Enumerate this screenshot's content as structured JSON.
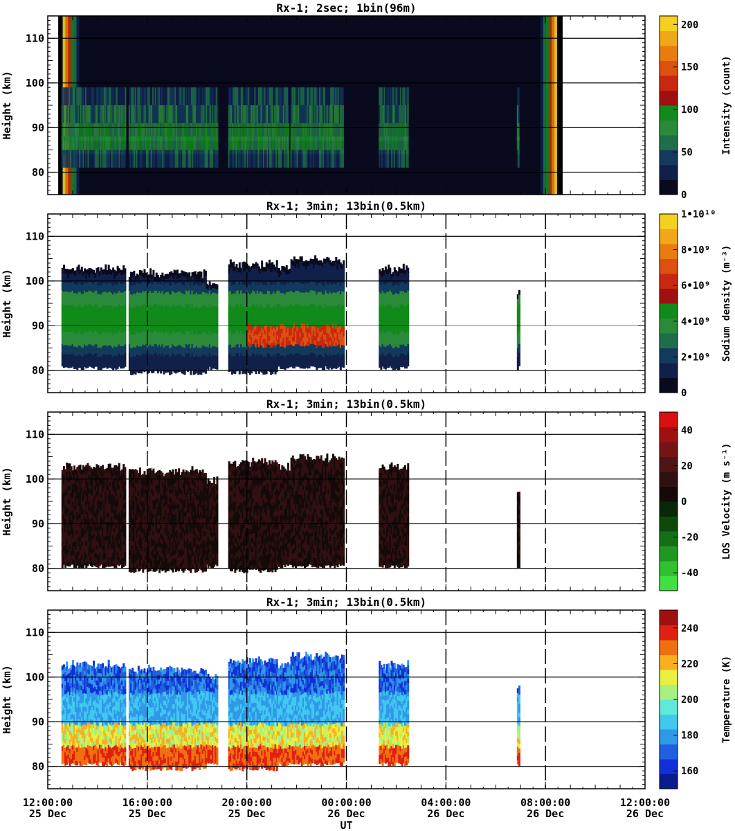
{
  "xaxis": {
    "label": "UT",
    "ticks": [
      {
        "time": "12:00:00",
        "date": "25 Dec",
        "hours": 0
      },
      {
        "time": "16:00:00",
        "date": "25 Dec",
        "hours": 4
      },
      {
        "time": "20:00:00",
        "date": "25 Dec",
        "hours": 8
      },
      {
        "time": "00:00:00",
        "date": "26 Dec",
        "hours": 12
      },
      {
        "time": "04:00:00",
        "date": "26 Dec",
        "hours": 16
      },
      {
        "time": "08:00:00",
        "date": "26 Dec",
        "hours": 20
      },
      {
        "time": "12:00:00",
        "date": "26 Dec",
        "hours": 24
      }
    ]
  },
  "chart_data": [
    {
      "type": "heatmap",
      "title": "Rx-1;  2sec; 1bin(96m)",
      "ylabel": "Height (km)",
      "ylim": [
        75,
        115
      ],
      "yticks": [
        "80",
        "90",
        "100",
        "110"
      ],
      "xlim_hours_since_12UT_25Dec": [
        0,
        24
      ],
      "colorbar": {
        "label": "Intensity (count)",
        "range": [
          0,
          210
        ],
        "ticks": [
          "0",
          "50",
          "100",
          "150",
          "200"
        ],
        "colors": [
          "#0a0a1e",
          "#10204a",
          "#123a5c",
          "#1e6e4a",
          "#2a8a3a",
          "#118a1a",
          "#a01010",
          "#c82810",
          "#dc5010",
          "#e87c10",
          "#f0a818",
          "#f4d020"
        ]
      }
    },
    {
      "type": "heatmap",
      "title": "Rx-1; 3min; 13bin(0.5km)",
      "ylabel": "Height (km)",
      "ylim": [
        75,
        115
      ],
      "yticks": [
        "80",
        "90",
        "100",
        "110"
      ],
      "colorbar": {
        "label": "Sodium density (m⁻³)",
        "range": [
          0,
          10000000000
        ],
        "ticks": [
          "0",
          "2•10⁹",
          "4•10⁹",
          "6•10⁹",
          "8•10⁹",
          "1•10¹⁰"
        ],
        "colors": [
          "#0a0a1e",
          "#10204a",
          "#123a5c",
          "#1e6e4a",
          "#2a8a3a",
          "#118a1a",
          "#a01010",
          "#c82810",
          "#dc5010",
          "#e87c10",
          "#f0a818",
          "#f4d020"
        ]
      }
    },
    {
      "type": "heatmap",
      "title": "Rx-1; 3min; 13bin(0.5km)",
      "ylabel": "Height (km)",
      "ylim": [
        75,
        115
      ],
      "yticks": [
        "80",
        "90",
        "100",
        "110"
      ],
      "colorbar": {
        "label": "LOS Velocity (m s⁻¹)",
        "range": [
          -50,
          50
        ],
        "ticks": [
          "-40",
          "-20",
          "0",
          "20",
          "40"
        ],
        "colors": [
          "#40e040",
          "#30c030",
          "#209820",
          "#147014",
          "#0c4a0c",
          "#082808",
          "#140a0a",
          "#301010",
          "#501414",
          "#741414",
          "#a01010",
          "#d81010"
        ]
      }
    },
    {
      "type": "heatmap",
      "title": "Rx-1; 3min; 13bin(0.5km)",
      "ylabel": "Height (km)",
      "ylim": [
        75,
        115
      ],
      "yticks": [
        "80",
        "90",
        "100",
        "110"
      ],
      "colorbar": {
        "label": "Temperature (K)",
        "range": [
          150,
          250
        ],
        "ticks": [
          "160",
          "180",
          "200",
          "220",
          "240"
        ],
        "colors": [
          "#081c8c",
          "#1030d8",
          "#2060e0",
          "#3098e8",
          "#40c8f0",
          "#60e8d8",
          "#a8f080",
          "#e8f040",
          "#f8b020",
          "#f07010",
          "#e02010",
          "#a01010"
        ]
      }
    }
  ]
}
